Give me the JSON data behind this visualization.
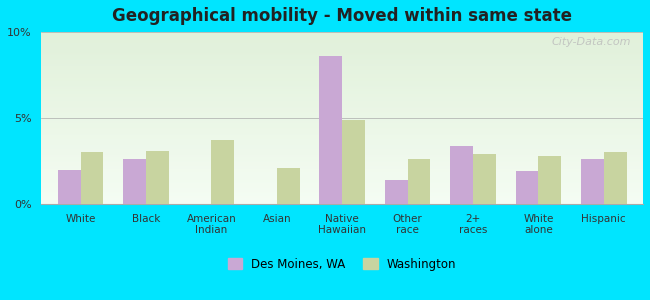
{
  "title": "Geographical mobility - Moved within same state",
  "categories": [
    "White",
    "Black",
    "American\nIndian",
    "Asian",
    "Native\nHawaiian",
    "Other\nrace",
    "2+\nraces",
    "White\nalone",
    "Hispanic"
  ],
  "des_moines": [
    2.0,
    2.6,
    0.0,
    0.0,
    8.6,
    1.4,
    3.4,
    1.9,
    2.6
  ],
  "washington": [
    3.0,
    3.1,
    3.7,
    2.1,
    4.9,
    2.6,
    2.9,
    2.8,
    3.0
  ],
  "bar_color_city": "#c9a8d4",
  "bar_color_state": "#c8d4a0",
  "background_outer": "#00e5ff",
  "ylim": [
    0,
    10
  ],
  "yticks": [
    0,
    5,
    10
  ],
  "ytick_labels": [
    "0%",
    "5%",
    "10%"
  ],
  "legend_city": "Des Moines, WA",
  "legend_state": "Washington",
  "bar_width": 0.35
}
